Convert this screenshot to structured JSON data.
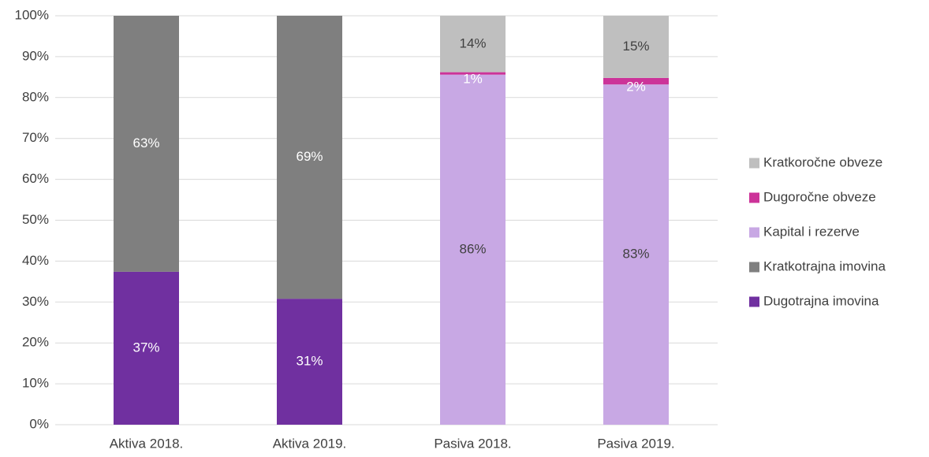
{
  "chart_data": {
    "type": "stacked_bar",
    "categories": [
      "Aktiva 2018.",
      "Aktiva 2019.",
      "Pasiva 2018.",
      "Pasiva 2019."
    ],
    "series": [
      {
        "name": "Dugotrajna imovina",
        "color": "#7030a0",
        "values": [
          37.4,
          30.8,
          null,
          null
        ],
        "value_labels": [
          "37%",
          "31%",
          null,
          null
        ]
      },
      {
        "name": "Kratkotrajna imovina",
        "color": "#7f7f7f",
        "values": [
          62.6,
          69.2,
          null,
          null
        ],
        "value_labels": [
          "63%",
          "69%",
          null,
          null
        ]
      },
      {
        "name": "Kapital i rezerve",
        "color": "#c8a8e4",
        "values": [
          null,
          null,
          85.6,
          83.2
        ],
        "value_labels": [
          null,
          null,
          "86%",
          "83%"
        ]
      },
      {
        "name": "Dugoročne obveze",
        "color": "#cc3399",
        "values": [
          null,
          null,
          0.6,
          1.6
        ],
        "value_labels": [
          null,
          null,
          "1%",
          "2%"
        ]
      },
      {
        "name": "Kratkoročne obveze",
        "color": "#bfbfbf",
        "values": [
          null,
          null,
          13.8,
          15.2
        ],
        "value_labels": [
          null,
          null,
          "14%",
          "15%"
        ]
      }
    ],
    "ylim": [
      0,
      100
    ],
    "yticks": [
      {
        "value": 0,
        "label": "0%"
      },
      {
        "value": 10,
        "label": "10%"
      },
      {
        "value": 20,
        "label": "20%"
      },
      {
        "value": 30,
        "label": "30%"
      },
      {
        "value": 40,
        "label": "40%"
      },
      {
        "value": 50,
        "label": "50%"
      },
      {
        "value": 60,
        "label": "60%"
      },
      {
        "value": 70,
        "label": "70%"
      },
      {
        "value": 80,
        "label": "80%"
      },
      {
        "value": 90,
        "label": "90%"
      },
      {
        "value": 100,
        "label": "100%"
      }
    ],
    "grid": true,
    "legend": "right"
  }
}
